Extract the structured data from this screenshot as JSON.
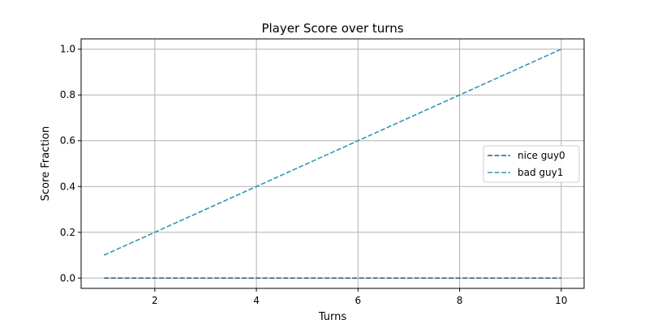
{
  "chart_data": {
    "type": "line",
    "title": "Player Score over turns",
    "xlabel": "Turns",
    "ylabel": "Score Fraction",
    "xlim": [
      0.55,
      10.45
    ],
    "ylim": [
      -0.045,
      1.045
    ],
    "xticks": [
      2,
      4,
      6,
      8,
      10
    ],
    "yticks": [
      "0.0",
      "0.2",
      "0.4",
      "0.6",
      "0.8",
      "1.0"
    ],
    "grid": true,
    "legend_position": "center-right",
    "series": [
      {
        "name": "nice guy0",
        "color": "#2b5d8a",
        "linestyle": "dashed",
        "x": [
          1,
          2,
          3,
          4,
          5,
          6,
          7,
          8,
          9,
          10
        ],
        "y": [
          0,
          0,
          0,
          0,
          0,
          0,
          0,
          0,
          0,
          0
        ]
      },
      {
        "name": "bad guy1",
        "color": "#2e98b4",
        "linestyle": "dashed",
        "x": [
          1,
          2,
          3,
          4,
          5,
          6,
          7,
          8,
          9,
          10
        ],
        "y": [
          0.1,
          0.2,
          0.3,
          0.4,
          0.5,
          0.6,
          0.7,
          0.8,
          0.9,
          1.0
        ]
      }
    ]
  }
}
